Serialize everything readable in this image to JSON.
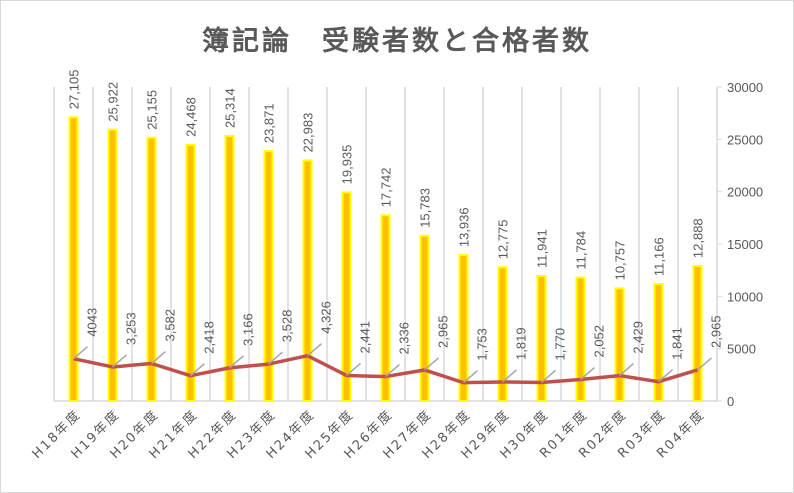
{
  "chart_data": {
    "type": "bar+line",
    "title": "簿記論　受験者数と合格者数",
    "categories": [
      "H18年度",
      "H19年度",
      "H20年度",
      "H21年度",
      "H22年度",
      "H23年度",
      "H24年度",
      "H25年度",
      "H26年度",
      "H27年度",
      "H28年度",
      "H29年度",
      "H30年度",
      "R01年度",
      "R02年度",
      "R03年度",
      "R04年度"
    ],
    "series": [
      {
        "name": "受験者数",
        "type": "bar",
        "color": "#FFC000",
        "border": "#FFFF00",
        "values": [
          27105,
          25922,
          25155,
          24468,
          25314,
          23871,
          22983,
          19935,
          17742,
          15783,
          13936,
          12775,
          11941,
          11784,
          10757,
          11166,
          12888
        ],
        "labels": [
          "27,105",
          "25,922",
          "25,155",
          "24,468",
          "25,314",
          "23,871",
          "22,983",
          "19,935",
          "17,742",
          "15,783",
          "13,936",
          "12,775",
          "11,941",
          "11,784",
          "10,757",
          "11,166",
          "12,888"
        ]
      },
      {
        "name": "合格者数",
        "type": "line",
        "color": "#C0504D",
        "values": [
          4043,
          3253,
          3582,
          2418,
          3166,
          3528,
          4326,
          2441,
          2336,
          2965,
          1753,
          1819,
          1770,
          2052,
          2429,
          1841,
          2965
        ],
        "labels": [
          "4043",
          "3,253",
          "3,582",
          "2,418",
          "3,166",
          "3,528",
          "4,326",
          "2,441",
          "2,336",
          "2,965",
          "1,753",
          "1,819",
          "1,770",
          "2,052",
          "2,429",
          "1,841",
          "2,965"
        ]
      }
    ],
    "y_axis": {
      "position": "right",
      "min": 0,
      "max": 30000,
      "step": 5000,
      "ticks": [
        "0",
        "5000",
        "10000",
        "15000",
        "20000",
        "25000",
        "30000"
      ]
    },
    "grid": "vertical category lines",
    "legend": "none"
  }
}
